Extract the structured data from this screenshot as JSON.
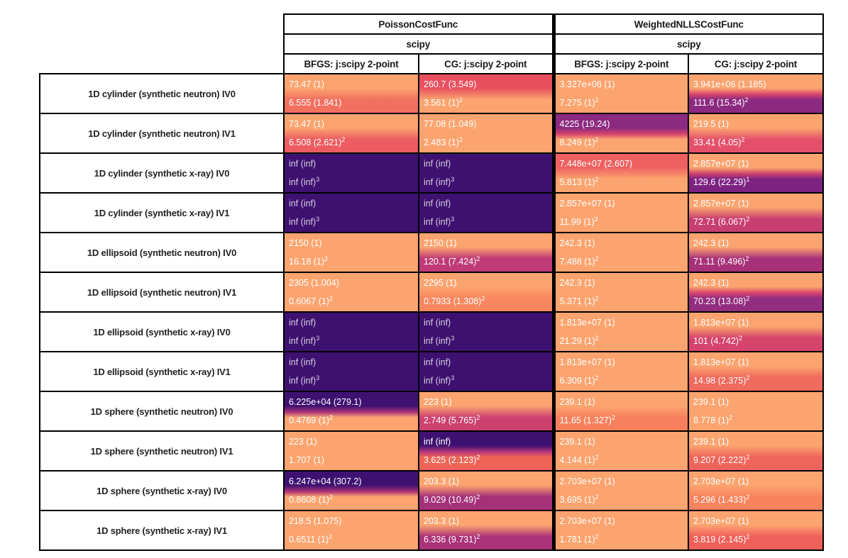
{
  "chart_data": {
    "type": "table",
    "title": "",
    "layout": "heatmap-table: rows are benchmark problems, columns are cost-function/software/minimizer combos; each cell holds two metric lines 'value (ratio)' with optional rank superscript; cell background encodes magnitude via magma-like colormap (orange=good/low ratio, purple=bad/high, dark-purple=inf)",
    "column_groups": [
      {
        "label": "PoissonCostFunc",
        "software": "scipy",
        "minimizers": [
          "BFGS: j:scipy 2-point",
          "CG: j:scipy 2-point"
        ]
      },
      {
        "label": "WeightedNLLSCostFunc",
        "software": "scipy",
        "minimizers": [
          "BFGS: j:scipy 2-point",
          "CG: j:scipy 2-point"
        ]
      }
    ],
    "colors": {
      "orange": "#fca46f",
      "dark_purple": "#3e1171",
      "dark_text": "#d6cfdd",
      "border": "#000000"
    },
    "rows": [
      {
        "label": "1D cylinder (synthetic neutron) IV0",
        "cells": [
          {
            "lines": [
              {
                "text": "73.47 (1)",
                "sup": ""
              },
              {
                "text": "6.555 (1.841)",
                "sup": ""
              }
            ],
            "top": "#fca46f",
            "bottom": "#f1705f"
          },
          {
            "lines": [
              {
                "text": "260.7 (3.549)",
                "sup": ""
              },
              {
                "text": "3.561 (1)",
                "sup": "2"
              }
            ],
            "top": "#e85060",
            "bottom": "#fca46f"
          },
          {
            "lines": [
              {
                "text": "3.327e+06 (1)",
                "sup": ""
              },
              {
                "text": "7.275 (1)",
                "sup": "2"
              }
            ],
            "top": "#fca46f",
            "bottom": "#fca46f"
          },
          {
            "lines": [
              {
                "text": "3.941e+06 (1.185)",
                "sup": ""
              },
              {
                "text": "111.6 (15.34)",
                "sup": "2"
              }
            ],
            "top": "#fca46f",
            "mid": "#d6446c",
            "bottom": "#8c2a81"
          }
        ]
      },
      {
        "label": "1D cylinder (synthetic neutron) IV1",
        "cells": [
          {
            "lines": [
              {
                "text": "73.47 (1)",
                "sup": ""
              },
              {
                "text": "6.508 (2.621)",
                "sup": "2"
              }
            ],
            "top": "#fca46f",
            "bottom": "#ec5c61"
          },
          {
            "lines": [
              {
                "text": "77.08 (1.049)",
                "sup": ""
              },
              {
                "text": "2.483 (1)",
                "sup": "2"
              }
            ],
            "top": "#fca46f",
            "bottom": "#fca46f"
          },
          {
            "lines": [
              {
                "text": "4225 (19.24)",
                "sup": ""
              },
              {
                "text": "8.249 (1)",
                "sup": "2"
              }
            ],
            "top": "#8c2a81",
            "mid": "#d6446c",
            "bottom": "#fca46f"
          },
          {
            "lines": [
              {
                "text": "219.5 (1)",
                "sup": ""
              },
              {
                "text": "33.41 (4.05)",
                "sup": "2"
              }
            ],
            "top": "#fca46f",
            "bottom": "#e4506a"
          }
        ]
      },
      {
        "label": "1D cylinder (synthetic x-ray) IV0",
        "cells": [
          {
            "lines": [
              {
                "text": "inf (inf)",
                "sup": ""
              },
              {
                "text": "inf (inf)",
                "sup": "3"
              }
            ],
            "top": "#3e1171",
            "bottom": "#3e1171",
            "text": "#d6cfdd"
          },
          {
            "lines": [
              {
                "text": "inf (inf)",
                "sup": ""
              },
              {
                "text": "inf (inf)",
                "sup": "3"
              }
            ],
            "top": "#3e1171",
            "bottom": "#3e1171",
            "text": "#d6cfdd"
          },
          {
            "lines": [
              {
                "text": "7.448e+07 (2.607)",
                "sup": ""
              },
              {
                "text": "5.813 (1)",
                "sup": "2"
              }
            ],
            "top": "#ee6160",
            "bottom": "#fca46f"
          },
          {
            "lines": [
              {
                "text": "2.857e+07 (1)",
                "sup": ""
              },
              {
                "text": "129.6 (22.29)",
                "sup": "1"
              }
            ],
            "top": "#fca46f",
            "mid": "#ce406f",
            "bottom": "#7c2382"
          }
        ]
      },
      {
        "label": "1D cylinder (synthetic x-ray) IV1",
        "cells": [
          {
            "lines": [
              {
                "text": "inf (inf)",
                "sup": ""
              },
              {
                "text": "inf (inf)",
                "sup": "3"
              }
            ],
            "top": "#3e1171",
            "bottom": "#3e1171",
            "text": "#d6cfdd"
          },
          {
            "lines": [
              {
                "text": "inf (inf)",
                "sup": ""
              },
              {
                "text": "inf (inf)",
                "sup": "3"
              }
            ],
            "top": "#3e1171",
            "bottom": "#3e1171",
            "text": "#d6cfdd"
          },
          {
            "lines": [
              {
                "text": "2.857e+07 (1)",
                "sup": ""
              },
              {
                "text": "11.99 (1)",
                "sup": "2"
              }
            ],
            "top": "#fca46f",
            "bottom": "#fca46f"
          },
          {
            "lines": [
              {
                "text": "2.857e+07 (1)",
                "sup": ""
              },
              {
                "text": "72.71 (6.067)",
                "sup": "2"
              }
            ],
            "top": "#fca46f",
            "bottom": "#c73e70"
          }
        ]
      },
      {
        "label": "1D ellipsoid (synthetic neutron) IV0",
        "cells": [
          {
            "lines": [
              {
                "text": "2150 (1)",
                "sup": ""
              },
              {
                "text": "16.18 (1)",
                "sup": "2"
              }
            ],
            "top": "#fca46f",
            "bottom": "#fca46f"
          },
          {
            "lines": [
              {
                "text": "2150 (1)",
                "sup": ""
              },
              {
                "text": "120.1 (7.424)",
                "sup": "2"
              }
            ],
            "top": "#fca46f",
            "bottom": "#bf3a76"
          },
          {
            "lines": [
              {
                "text": "242.3 (1)",
                "sup": ""
              },
              {
                "text": "7.488 (1)",
                "sup": "2"
              }
            ],
            "top": "#fca46f",
            "bottom": "#fca46f"
          },
          {
            "lines": [
              {
                "text": "242.3 (1)",
                "sup": ""
              },
              {
                "text": "71.11 (9.496)",
                "sup": "2"
              }
            ],
            "top": "#fca46f",
            "bottom": "#a63179"
          }
        ]
      },
      {
        "label": "1D ellipsoid (synthetic neutron) IV1",
        "cells": [
          {
            "lines": [
              {
                "text": "2305 (1.004)",
                "sup": ""
              },
              {
                "text": "0.6067 (1)",
                "sup": "2"
              }
            ],
            "top": "#fca46f",
            "bottom": "#fca46f"
          },
          {
            "lines": [
              {
                "text": "2295 (1)",
                "sup": ""
              },
              {
                "text": "0.7933 (1.308)",
                "sup": "2"
              }
            ],
            "top": "#fca46f",
            "bottom": "#f8875f"
          },
          {
            "lines": [
              {
                "text": "242.3 (1)",
                "sup": ""
              },
              {
                "text": "5.371 (1)",
                "sup": "2"
              }
            ],
            "top": "#fca46f",
            "bottom": "#fca46f"
          },
          {
            "lines": [
              {
                "text": "242.3 (1)",
                "sup": ""
              },
              {
                "text": "70.23 (13.08)",
                "sup": "2"
              }
            ],
            "top": "#fca46f",
            "mid": "#d6446c",
            "bottom": "#922d80"
          }
        ]
      },
      {
        "label": "1D ellipsoid (synthetic x-ray) IV0",
        "cells": [
          {
            "lines": [
              {
                "text": "inf (inf)",
                "sup": ""
              },
              {
                "text": "inf (inf)",
                "sup": "3"
              }
            ],
            "top": "#3e1171",
            "bottom": "#3e1171",
            "text": "#d6cfdd"
          },
          {
            "lines": [
              {
                "text": "inf (inf)",
                "sup": ""
              },
              {
                "text": "inf (inf)",
                "sup": "3"
              }
            ],
            "top": "#3e1171",
            "bottom": "#3e1171",
            "text": "#d6cfdd"
          },
          {
            "lines": [
              {
                "text": "1.813e+07 (1)",
                "sup": ""
              },
              {
                "text": "21.29 (1)",
                "sup": "2"
              }
            ],
            "top": "#fca46f",
            "bottom": "#fca46f"
          },
          {
            "lines": [
              {
                "text": "1.813e+07 (1)",
                "sup": ""
              },
              {
                "text": "101 (4.742)",
                "sup": "2"
              }
            ],
            "top": "#fca46f",
            "bottom": "#d6446c"
          }
        ]
      },
      {
        "label": "1D ellipsoid (synthetic x-ray) IV1",
        "cells": [
          {
            "lines": [
              {
                "text": "inf (inf)",
                "sup": ""
              },
              {
                "text": "inf (inf)",
                "sup": "3"
              }
            ],
            "top": "#3e1171",
            "bottom": "#3e1171",
            "text": "#d6cfdd"
          },
          {
            "lines": [
              {
                "text": "inf (inf)",
                "sup": ""
              },
              {
                "text": "inf (inf)",
                "sup": "3"
              }
            ],
            "top": "#3e1171",
            "bottom": "#3e1171",
            "text": "#d6cfdd"
          },
          {
            "lines": [
              {
                "text": "1.813e+07 (1)",
                "sup": ""
              },
              {
                "text": "6.309 (1)",
                "sup": "2"
              }
            ],
            "top": "#fca46f",
            "bottom": "#fca46f"
          },
          {
            "lines": [
              {
                "text": "1.813e+07 (1)",
                "sup": ""
              },
              {
                "text": "14.98 (2.375)",
                "sup": "2"
              }
            ],
            "top": "#fca46f",
            "bottom": "#f06a5e"
          }
        ]
      },
      {
        "label": "1D sphere (synthetic neutron) IV0",
        "cells": [
          {
            "lines": [
              {
                "text": "6.225e+04 (279.1)",
                "sup": ""
              },
              {
                "text": "0.4769 (1)",
                "sup": "2"
              }
            ],
            "top": "#3e1171",
            "mid": "#a93179",
            "bottom": "#fca46f"
          },
          {
            "lines": [
              {
                "text": "223 (1)",
                "sup": ""
              },
              {
                "text": "2.749 (5.765)",
                "sup": "2"
              }
            ],
            "top": "#fca46f",
            "bottom": "#cc4170"
          },
          {
            "lines": [
              {
                "text": "239.1 (1)",
                "sup": ""
              },
              {
                "text": "11.65 (1.327)",
                "sup": "2"
              }
            ],
            "top": "#fca46f",
            "bottom": "#f6805c"
          },
          {
            "lines": [
              {
                "text": "239.1 (1)",
                "sup": ""
              },
              {
                "text": "8.778 (1)",
                "sup": "2"
              }
            ],
            "top": "#fca46f",
            "bottom": "#fca46f"
          }
        ]
      },
      {
        "label": "1D sphere (synthetic neutron) IV1",
        "cells": [
          {
            "lines": [
              {
                "text": "223 (1)",
                "sup": ""
              },
              {
                "text": "1.707 (1)",
                "sup": ""
              }
            ],
            "top": "#fca46f",
            "bottom": "#fca46f"
          },
          {
            "lines": [
              {
                "text": "inf (inf)",
                "sup": ""
              },
              {
                "text": "3.625 (2.123)",
                "sup": "2"
              }
            ],
            "top": "#3e1171",
            "mid": "#b5367a",
            "bottom": "#ee6355"
          },
          {
            "lines": [
              {
                "text": "239.1 (1)",
                "sup": ""
              },
              {
                "text": "4.144 (1)",
                "sup": "2"
              }
            ],
            "top": "#fca46f",
            "bottom": "#fca46f"
          },
          {
            "lines": [
              {
                "text": "239.1 (1)",
                "sup": ""
              },
              {
                "text": "9.207 (2.222)",
                "sup": "2"
              }
            ],
            "top": "#fca46f",
            "bottom": "#f0655b"
          }
        ]
      },
      {
        "label": "1D sphere (synthetic x-ray) IV0",
        "cells": [
          {
            "lines": [
              {
                "text": "6.247e+04 (307.2)",
                "sup": ""
              },
              {
                "text": "0.8608 (1)",
                "sup": "2"
              }
            ],
            "top": "#3e1171",
            "mid": "#a93179",
            "bottom": "#fca46f"
          },
          {
            "lines": [
              {
                "text": "203.3 (1)",
                "sup": ""
              },
              {
                "text": "9.029 (10.49)",
                "sup": "2"
              }
            ],
            "top": "#fca46f",
            "bottom": "#a53179"
          },
          {
            "lines": [
              {
                "text": "2.703e+07 (1)",
                "sup": ""
              },
              {
                "text": "3.695 (1)",
                "sup": "2"
              }
            ],
            "top": "#fca46f",
            "bottom": "#fca46f"
          },
          {
            "lines": [
              {
                "text": "2.703e+07 (1)",
                "sup": ""
              },
              {
                "text": "5.296 (1.433)",
                "sup": "2"
              }
            ],
            "top": "#fca46f",
            "bottom": "#f8835d"
          }
        ]
      },
      {
        "label": "1D sphere (synthetic x-ray) IV1",
        "cells": [
          {
            "lines": [
              {
                "text": "218.5 (1.075)",
                "sup": ""
              },
              {
                "text": "0.6511 (1)",
                "sup": "2"
              }
            ],
            "top": "#fca46f",
            "bottom": "#fca46f"
          },
          {
            "lines": [
              {
                "text": "203.3 (1)",
                "sup": ""
              },
              {
                "text": "6.336 (9.731)",
                "sup": "2"
              }
            ],
            "top": "#fca46f",
            "bottom": "#aa3278"
          },
          {
            "lines": [
              {
                "text": "2.703e+07 (1)",
                "sup": ""
              },
              {
                "text": "1.781 (1)",
                "sup": "2"
              }
            ],
            "top": "#fca46f",
            "bottom": "#fca46f"
          },
          {
            "lines": [
              {
                "text": "2.703e+07 (1)",
                "sup": ""
              },
              {
                "text": "3.819 (2.145)",
                "sup": "2"
              }
            ],
            "top": "#fca46f",
            "bottom": "#f0605a"
          }
        ]
      }
    ]
  }
}
